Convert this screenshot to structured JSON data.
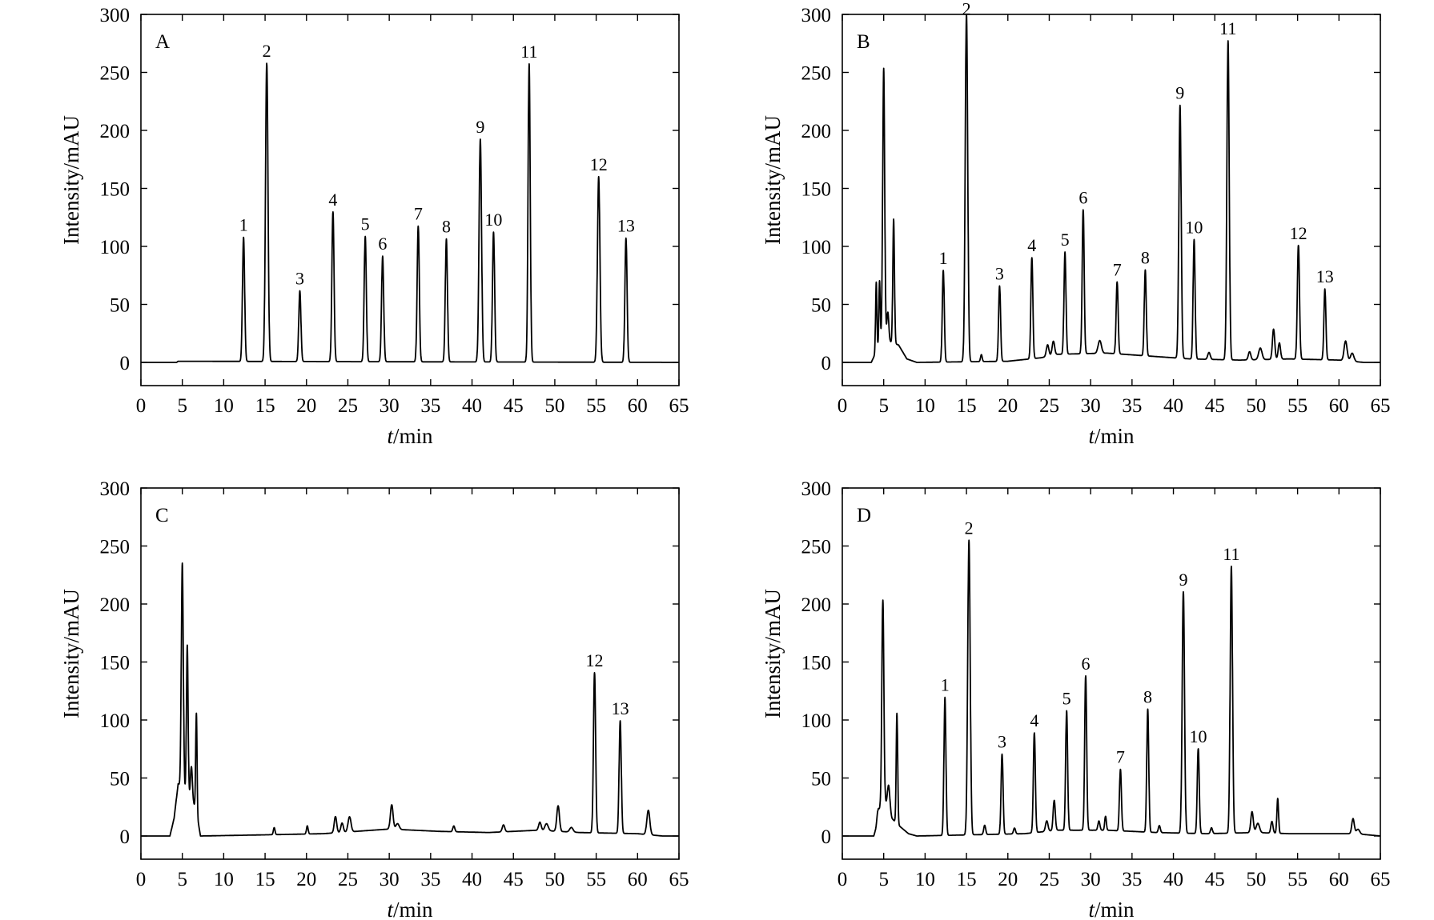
{
  "chart_data": [
    {
      "type": "line",
      "panel": "A",
      "xlabel_italic": "t",
      "xlabel_rest": "/min",
      "ylabel": "Intensity/mAU",
      "xlim": [
        0,
        65
      ],
      "ylim": [
        -20,
        300
      ],
      "xticks": [
        0,
        5,
        10,
        15,
        20,
        25,
        30,
        35,
        40,
        45,
        50,
        55,
        60,
        65
      ],
      "yticks": [
        0,
        50,
        100,
        150,
        200,
        250,
        300
      ],
      "grid": false,
      "baseline": [
        [
          0,
          0
        ],
        [
          4.3,
          0
        ],
        [
          4.5,
          1
        ],
        [
          65,
          0
        ]
      ],
      "peaks": [
        {
          "label": "1",
          "t": 12.4,
          "h": 107,
          "w": 0.13
        },
        {
          "label": "2",
          "t": 15.2,
          "h": 257,
          "w": 0.15
        },
        {
          "label": "3",
          "t": 19.2,
          "h": 61,
          "w": 0.13
        },
        {
          "label": "4",
          "t": 23.2,
          "h": 129,
          "w": 0.13
        },
        {
          "label": "5",
          "t": 27.1,
          "h": 108,
          "w": 0.13
        },
        {
          "label": "6",
          "t": 29.2,
          "h": 91,
          "w": 0.13
        },
        {
          "label": "7",
          "t": 33.5,
          "h": 117,
          "w": 0.13
        },
        {
          "label": "8",
          "t": 36.9,
          "h": 106,
          "w": 0.13
        },
        {
          "label": "9",
          "t": 41.0,
          "h": 192,
          "w": 0.15
        },
        {
          "label": "10",
          "t": 42.6,
          "h": 112,
          "w": 0.13
        },
        {
          "label": "11",
          "t": 46.9,
          "h": 257,
          "w": 0.13
        },
        {
          "label": "12",
          "t": 55.3,
          "h": 160,
          "w": 0.15
        },
        {
          "label": "13",
          "t": 58.6,
          "h": 107,
          "w": 0.13
        }
      ],
      "minor_peaks": []
    },
    {
      "type": "line",
      "panel": "B",
      "xlabel_italic": "t",
      "xlabel_rest": "/min",
      "ylabel": "Intensity/mAU",
      "xlim": [
        0,
        65
      ],
      "ylim": [
        -20,
        300
      ],
      "xticks": [
        0,
        5,
        10,
        15,
        20,
        25,
        30,
        35,
        40,
        45,
        50,
        55,
        60,
        65
      ],
      "yticks": [
        0,
        50,
        100,
        150,
        200,
        250,
        300
      ],
      "grid": false,
      "baseline": [
        [
          0,
          0
        ],
        [
          3.5,
          0
        ],
        [
          4.8,
          20
        ],
        [
          6.8,
          15
        ],
        [
          7.8,
          3
        ],
        [
          9,
          0
        ],
        [
          20,
          1
        ],
        [
          24,
          4
        ],
        [
          26,
          7
        ],
        [
          32,
          8
        ],
        [
          38,
          5
        ],
        [
          42,
          3
        ],
        [
          48,
          2
        ],
        [
          54,
          3
        ],
        [
          60,
          2
        ],
        [
          63,
          0
        ],
        [
          65,
          0
        ]
      ],
      "peaks": [
        {
          "label": "",
          "t": 4.1,
          "h": 60,
          "w": 0.08
        },
        {
          "label": "",
          "t": 4.5,
          "h": 55,
          "w": 0.08
        },
        {
          "label": "",
          "t": 5.0,
          "h": 234,
          "w": 0.12
        },
        {
          "label": "",
          "t": 5.5,
          "h": 25,
          "w": 0.12
        },
        {
          "label": "",
          "t": 6.2,
          "h": 107,
          "w": 0.1
        },
        {
          "label": "1",
          "t": 12.2,
          "h": 79,
          "w": 0.12
        },
        {
          "label": "2",
          "t": 15.0,
          "h": 300,
          "w": 0.15
        },
        {
          "label": "3",
          "t": 19.0,
          "h": 65,
          "w": 0.12
        },
        {
          "label": "4",
          "t": 22.9,
          "h": 87,
          "w": 0.12
        },
        {
          "label": "5",
          "t": 26.9,
          "h": 88,
          "w": 0.12
        },
        {
          "label": "6",
          "t": 29.1,
          "h": 124,
          "w": 0.12
        },
        {
          "label": "7",
          "t": 33.2,
          "h": 62,
          "w": 0.12
        },
        {
          "label": "8",
          "t": 36.6,
          "h": 74,
          "w": 0.12
        },
        {
          "label": "9",
          "t": 40.8,
          "h": 218,
          "w": 0.14
        },
        {
          "label": "10",
          "t": 42.5,
          "h": 103,
          "w": 0.12
        },
        {
          "label": "11",
          "t": 46.6,
          "h": 275,
          "w": 0.14
        },
        {
          "label": "12",
          "t": 55.1,
          "h": 98,
          "w": 0.13
        },
        {
          "label": "13",
          "t": 58.3,
          "h": 61,
          "w": 0.12
        }
      ],
      "minor_peaks": [
        {
          "t": 16.8,
          "h": 6,
          "w": 0.1
        },
        {
          "t": 24.8,
          "h": 10,
          "w": 0.15
        },
        {
          "t": 25.5,
          "h": 12,
          "w": 0.15
        },
        {
          "t": 31.1,
          "h": 11,
          "w": 0.2
        },
        {
          "t": 44.3,
          "h": 6,
          "w": 0.15
        },
        {
          "t": 49.2,
          "h": 7,
          "w": 0.15
        },
        {
          "t": 50.5,
          "h": 10,
          "w": 0.2
        },
        {
          "t": 52.1,
          "h": 26,
          "w": 0.14
        },
        {
          "t": 52.8,
          "h": 14,
          "w": 0.14
        },
        {
          "t": 60.8,
          "h": 17,
          "w": 0.18
        },
        {
          "t": 61.6,
          "h": 7,
          "w": 0.2
        }
      ]
    },
    {
      "type": "line",
      "panel": "C",
      "xlabel_italic": "t",
      "xlabel_rest": "/min",
      "ylabel": "Intensity/mAU",
      "xlim": [
        0,
        65
      ],
      "ylim": [
        -20,
        300
      ],
      "xticks": [
        0,
        5,
        10,
        15,
        20,
        25,
        30,
        35,
        40,
        45,
        50,
        55,
        60,
        65
      ],
      "yticks": [
        0,
        50,
        100,
        150,
        200,
        250,
        300
      ],
      "grid": false,
      "baseline": [
        [
          0,
          0
        ],
        [
          3.5,
          0
        ],
        [
          4.0,
          15
        ],
        [
          4.5,
          45
        ],
        [
          6.6,
          25
        ],
        [
          7.2,
          0
        ],
        [
          15,
          1
        ],
        [
          22,
          2
        ],
        [
          30,
          6
        ],
        [
          36,
          4
        ],
        [
          42,
          3
        ],
        [
          48,
          5
        ],
        [
          53,
          3
        ],
        [
          60,
          2
        ],
        [
          63,
          0
        ],
        [
          65,
          0
        ]
      ],
      "peaks": [
        {
          "label": "",
          "t": 5.0,
          "h": 195,
          "w": 0.12
        },
        {
          "label": "",
          "t": 5.6,
          "h": 130,
          "w": 0.1
        },
        {
          "label": "",
          "t": 6.1,
          "h": 30,
          "w": 0.12
        },
        {
          "label": "",
          "t": 6.7,
          "h": 85,
          "w": 0.08
        },
        {
          "label": "12",
          "t": 54.8,
          "h": 138,
          "w": 0.13
        },
        {
          "label": "13",
          "t": 57.9,
          "h": 97,
          "w": 0.13
        }
      ],
      "minor_peaks": [
        {
          "t": 16.1,
          "h": 6,
          "w": 0.1
        },
        {
          "t": 20.1,
          "h": 7,
          "w": 0.1
        },
        {
          "t": 23.5,
          "h": 14,
          "w": 0.15
        },
        {
          "t": 24.3,
          "h": 8,
          "w": 0.15
        },
        {
          "t": 25.2,
          "h": 13,
          "w": 0.18
        },
        {
          "t": 30.3,
          "h": 21,
          "w": 0.16
        },
        {
          "t": 31.0,
          "h": 5,
          "w": 0.2
        },
        {
          "t": 37.8,
          "h": 5,
          "w": 0.12
        },
        {
          "t": 43.8,
          "h": 6,
          "w": 0.15
        },
        {
          "t": 48.2,
          "h": 7,
          "w": 0.15
        },
        {
          "t": 49.0,
          "h": 6,
          "w": 0.2
        },
        {
          "t": 50.4,
          "h": 22,
          "w": 0.16
        },
        {
          "t": 52.0,
          "h": 4,
          "w": 0.2
        },
        {
          "t": 61.3,
          "h": 21,
          "w": 0.18
        }
      ]
    },
    {
      "type": "line",
      "panel": "D",
      "xlabel_italic": "t",
      "xlabel_rest": "/min",
      "ylabel": "Intensity/mAU",
      "xlim": [
        0,
        65
      ],
      "ylim": [
        -20,
        300
      ],
      "xticks": [
        0,
        5,
        10,
        15,
        20,
        25,
        30,
        35,
        40,
        45,
        50,
        55,
        60,
        65
      ],
      "yticks": [
        0,
        50,
        100,
        150,
        200,
        250,
        300
      ],
      "grid": false,
      "baseline": [
        [
          0,
          0
        ],
        [
          3.8,
          0
        ],
        [
          4.3,
          12
        ],
        [
          4.8,
          35
        ],
        [
          6.0,
          15
        ],
        [
          7.0,
          8
        ],
        [
          8.0,
          2
        ],
        [
          9,
          0
        ],
        [
          22,
          2
        ],
        [
          26,
          5
        ],
        [
          32,
          5
        ],
        [
          38,
          3
        ],
        [
          44,
          2
        ],
        [
          50,
          3
        ],
        [
          54,
          2
        ],
        [
          62,
          2
        ],
        [
          65,
          0
        ]
      ],
      "peaks": [
        {
          "label": "",
          "t": 4.3,
          "h": 10,
          "w": 0.12
        },
        {
          "label": "",
          "t": 4.9,
          "h": 170,
          "w": 0.12
        },
        {
          "label": "",
          "t": 5.6,
          "h": 22,
          "w": 0.15
        },
        {
          "label": "",
          "t": 6.6,
          "h": 95,
          "w": 0.09
        },
        {
          "label": "1",
          "t": 12.4,
          "h": 119,
          "w": 0.12
        },
        {
          "label": "2",
          "t": 15.3,
          "h": 254,
          "w": 0.15
        },
        {
          "label": "3",
          "t": 19.3,
          "h": 69,
          "w": 0.12
        },
        {
          "label": "4",
          "t": 23.2,
          "h": 86,
          "w": 0.12
        },
        {
          "label": "5",
          "t": 27.1,
          "h": 103,
          "w": 0.12
        },
        {
          "label": "6",
          "t": 29.4,
          "h": 133,
          "w": 0.12
        },
        {
          "label": "7",
          "t": 33.6,
          "h": 53,
          "w": 0.12
        },
        {
          "label": "8",
          "t": 36.9,
          "h": 106,
          "w": 0.12
        },
        {
          "label": "9",
          "t": 41.2,
          "h": 208,
          "w": 0.14
        },
        {
          "label": "10",
          "t": 43.0,
          "h": 73,
          "w": 0.12
        },
        {
          "label": "11",
          "t": 47.0,
          "h": 230,
          "w": 0.14
        }
      ],
      "minor_peaks": [
        {
          "t": 17.2,
          "h": 8,
          "w": 0.12
        },
        {
          "t": 20.8,
          "h": 5,
          "w": 0.12
        },
        {
          "t": 24.7,
          "h": 9,
          "w": 0.15
        },
        {
          "t": 25.6,
          "h": 26,
          "w": 0.13
        },
        {
          "t": 31.0,
          "h": 8,
          "w": 0.12
        },
        {
          "t": 31.8,
          "h": 12,
          "w": 0.1
        },
        {
          "t": 38.3,
          "h": 6,
          "w": 0.12
        },
        {
          "t": 44.6,
          "h": 5,
          "w": 0.12
        },
        {
          "t": 49.5,
          "h": 18,
          "w": 0.15
        },
        {
          "t": 50.2,
          "h": 8,
          "w": 0.2
        },
        {
          "t": 51.9,
          "h": 10,
          "w": 0.13
        },
        {
          "t": 52.6,
          "h": 30,
          "w": 0.1
        },
        {
          "t": 61.7,
          "h": 13,
          "w": 0.15
        },
        {
          "t": 62.3,
          "h": 4,
          "w": 0.2
        }
      ]
    }
  ]
}
